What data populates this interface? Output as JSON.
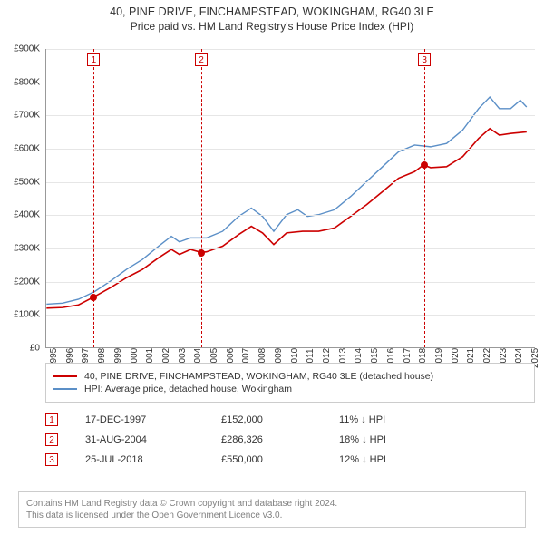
{
  "title_line1": "40, PINE DRIVE, FINCHAMPSTEAD, WOKINGHAM, RG40 3LE",
  "title_line2": "Price paid vs. HM Land Registry's House Price Index (HPI)",
  "chart": {
    "type": "line",
    "xlim": [
      1995,
      2025.5
    ],
    "ylim": [
      0,
      900000
    ],
    "ytick_step": 100000,
    "yticks": [
      "£0",
      "£100K",
      "£200K",
      "£300K",
      "£400K",
      "£500K",
      "£600K",
      "£700K",
      "£800K",
      "£900K"
    ],
    "xticks": [
      1995,
      1996,
      1997,
      1998,
      1999,
      2000,
      2001,
      2002,
      2003,
      2004,
      2005,
      2006,
      2007,
      2008,
      2009,
      2010,
      2011,
      2012,
      2013,
      2014,
      2015,
      2016,
      2017,
      2018,
      2019,
      2020,
      2021,
      2022,
      2023,
      2024,
      2025
    ],
    "grid_color": "#e6e6e6",
    "axis_color": "#999999",
    "background_color": "#ffffff",
    "series": [
      {
        "name": "property",
        "color": "#cc0000",
        "width": 1.6,
        "data": [
          [
            1995.0,
            118000
          ],
          [
            1996.0,
            120000
          ],
          [
            1997.0,
            128000
          ],
          [
            1997.96,
            152000
          ],
          [
            1999.0,
            180000
          ],
          [
            2000.0,
            210000
          ],
          [
            2001.0,
            235000
          ],
          [
            2002.0,
            270000
          ],
          [
            2002.8,
            295000
          ],
          [
            2003.3,
            280000
          ],
          [
            2004.0,
            295000
          ],
          [
            2004.66,
            286326
          ],
          [
            2005.0,
            288000
          ],
          [
            2006.0,
            305000
          ],
          [
            2007.0,
            340000
          ],
          [
            2007.8,
            365000
          ],
          [
            2008.5,
            345000
          ],
          [
            2009.2,
            310000
          ],
          [
            2010.0,
            345000
          ],
          [
            2011.0,
            350000
          ],
          [
            2012.0,
            350000
          ],
          [
            2013.0,
            360000
          ],
          [
            2014.0,
            395000
          ],
          [
            2015.0,
            430000
          ],
          [
            2016.0,
            470000
          ],
          [
            2017.0,
            510000
          ],
          [
            2018.0,
            530000
          ],
          [
            2018.56,
            550000
          ],
          [
            2019.0,
            542000
          ],
          [
            2020.0,
            545000
          ],
          [
            2021.0,
            575000
          ],
          [
            2022.0,
            630000
          ],
          [
            2022.7,
            660000
          ],
          [
            2023.3,
            640000
          ],
          [
            2024.0,
            645000
          ],
          [
            2025.0,
            650000
          ]
        ]
      },
      {
        "name": "hpi",
        "color": "#5b8fc7",
        "width": 1.4,
        "data": [
          [
            1995.0,
            130000
          ],
          [
            1996.0,
            133000
          ],
          [
            1997.0,
            145000
          ],
          [
            1998.0,
            168000
          ],
          [
            1999.0,
            200000
          ],
          [
            2000.0,
            235000
          ],
          [
            2001.0,
            265000
          ],
          [
            2002.0,
            305000
          ],
          [
            2002.8,
            335000
          ],
          [
            2003.3,
            318000
          ],
          [
            2004.0,
            330000
          ],
          [
            2005.0,
            330000
          ],
          [
            2006.0,
            350000
          ],
          [
            2007.0,
            395000
          ],
          [
            2007.8,
            420000
          ],
          [
            2008.5,
            395000
          ],
          [
            2009.2,
            350000
          ],
          [
            2010.0,
            400000
          ],
          [
            2010.7,
            415000
          ],
          [
            2011.3,
            395000
          ],
          [
            2012.0,
            400000
          ],
          [
            2013.0,
            415000
          ],
          [
            2014.0,
            455000
          ],
          [
            2015.0,
            500000
          ],
          [
            2016.0,
            545000
          ],
          [
            2017.0,
            590000
          ],
          [
            2018.0,
            610000
          ],
          [
            2019.0,
            605000
          ],
          [
            2020.0,
            615000
          ],
          [
            2021.0,
            655000
          ],
          [
            2022.0,
            720000
          ],
          [
            2022.7,
            755000
          ],
          [
            2023.3,
            720000
          ],
          [
            2024.0,
            720000
          ],
          [
            2024.6,
            745000
          ],
          [
            2025.0,
            725000
          ]
        ]
      }
    ],
    "event_markers": [
      {
        "n": "1",
        "x": 1997.96,
        "y": 152000,
        "line_color": "#cc0000"
      },
      {
        "n": "2",
        "x": 2004.66,
        "y": 286326,
        "line_color": "#cc0000"
      },
      {
        "n": "3",
        "x": 2018.56,
        "y": 550000,
        "line_color": "#cc0000"
      }
    ],
    "dot_color": "#cc0000",
    "dot_radius": 4
  },
  "legend": {
    "items": [
      {
        "color": "#cc0000",
        "label": "40, PINE DRIVE, FINCHAMPSTEAD, WOKINGHAM, RG40 3LE (detached house)"
      },
      {
        "color": "#5b8fc7",
        "label": "HPI: Average price, detached house, Wokingham"
      }
    ]
  },
  "events": [
    {
      "n": "1",
      "date": "17-DEC-1997",
      "price": "£152,000",
      "diff": "11% ↓ HPI"
    },
    {
      "n": "2",
      "date": "31-AUG-2004",
      "price": "£286,326",
      "diff": "18% ↓ HPI"
    },
    {
      "n": "3",
      "date": "25-JUL-2018",
      "price": "£550,000",
      "diff": "12% ↓ HPI"
    }
  ],
  "footer_line1": "Contains HM Land Registry data © Crown copyright and database right 2024.",
  "footer_line2": "This data is licensed under the Open Government Licence v3.0."
}
